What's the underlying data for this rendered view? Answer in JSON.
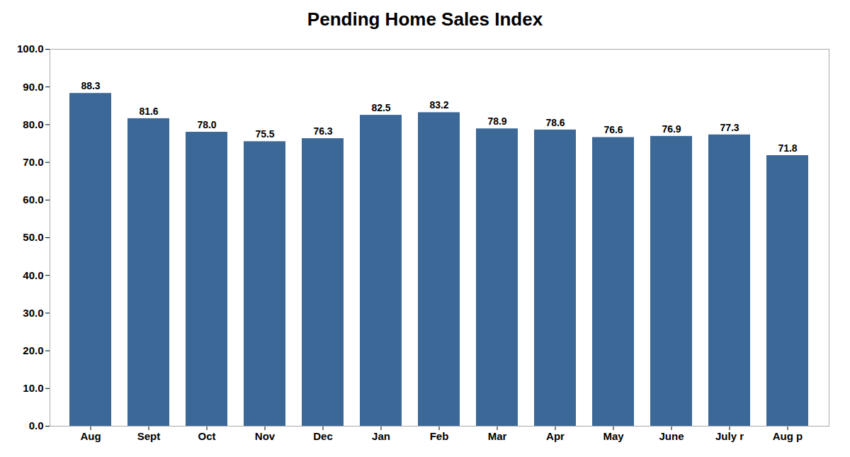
{
  "chart_data": {
    "type": "bar",
    "title": "Pending Home Sales Index",
    "categories": [
      "Aug",
      "Sept",
      "Oct",
      "Nov",
      "Dec",
      "Jan",
      "Feb",
      "Mar",
      "Apr",
      "May",
      "June",
      "July r",
      "Aug p"
    ],
    "values": [
      88.3,
      81.6,
      78.0,
      75.5,
      76.3,
      82.5,
      83.2,
      78.9,
      78.6,
      76.6,
      76.9,
      77.3,
      71.8
    ],
    "value_labels": [
      "88.3",
      "81.6",
      "78.0",
      "75.5",
      "76.3",
      "82.5",
      "83.2",
      "78.9",
      "78.6",
      "76.6",
      "76.9",
      "77.3",
      "71.8"
    ],
    "color": "#3B6897",
    "ylim": [
      0,
      100
    ],
    "yticks": [
      {
        "value": 0,
        "label": "0.0"
      },
      {
        "value": 10,
        "label": "10.0"
      },
      {
        "value": 20,
        "label": "20.0"
      },
      {
        "value": 30,
        "label": "30.0"
      },
      {
        "value": 40,
        "label": "40.0"
      },
      {
        "value": 50,
        "label": "50.0"
      },
      {
        "value": 60,
        "label": "60.0"
      },
      {
        "value": 70,
        "label": "70.0"
      },
      {
        "value": 80,
        "label": "80.0"
      },
      {
        "value": 90,
        "label": "90.0"
      },
      {
        "value": 100,
        "label": "100.0"
      }
    ],
    "grid": false,
    "data_labels": true
  }
}
